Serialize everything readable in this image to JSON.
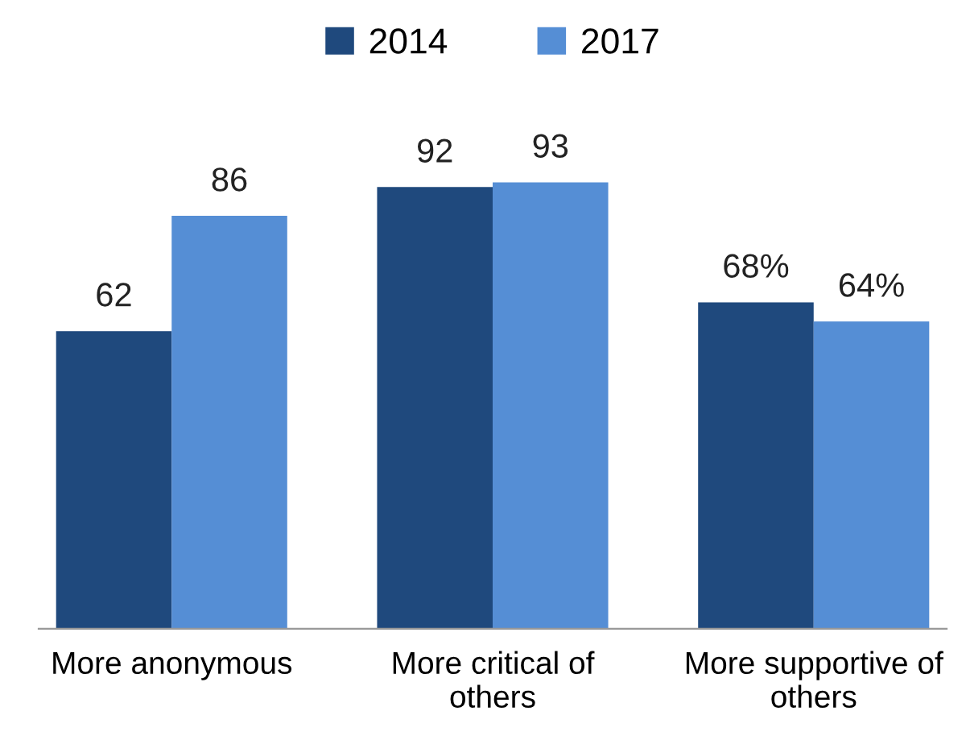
{
  "chart_data": {
    "type": "bar",
    "categories": [
      "More anonymous",
      "More critical of\nothers",
      "More supportive of\nothers"
    ],
    "series": [
      {
        "name": "2014",
        "color": "#1f497d",
        "values": [
          62,
          92,
          68
        ],
        "value_labels": [
          "62",
          "92",
          "68%"
        ]
      },
      {
        "name": "2017",
        "color": "#558ed5",
        "values": [
          86,
          93,
          64
        ],
        "value_labels": [
          "86",
          "93",
          "64%"
        ]
      }
    ],
    "legend": "top",
    "grid": false
  }
}
